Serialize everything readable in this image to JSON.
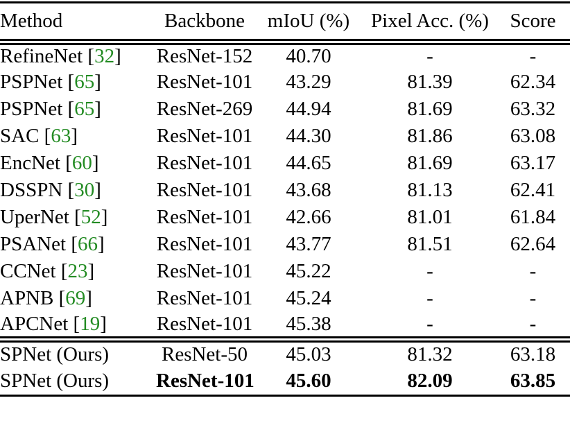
{
  "table": {
    "header": {
      "method": "Method",
      "backbone": "Backbone",
      "miou": "mIoU (%)",
      "pixel_acc": "Pixel Acc. (%)",
      "score": "Score"
    },
    "citation_color": "#228B22",
    "rows": [
      {
        "method": "RefineNet",
        "cite": "[32]",
        "backbone": "ResNet-152",
        "miou": "40.70",
        "pixel_acc": "-",
        "score": "-",
        "bold_values": false
      },
      {
        "method": "PSPNet",
        "cite": "[65]",
        "backbone": "ResNet-101",
        "miou": "43.29",
        "pixel_acc": "81.39",
        "score": "62.34",
        "bold_values": false
      },
      {
        "method": "PSPNet",
        "cite": "[65]",
        "backbone": "ResNet-269",
        "miou": "44.94",
        "pixel_acc": "81.69",
        "score": "63.32",
        "bold_values": false
      },
      {
        "method": "SAC",
        "cite": "[63]",
        "backbone": "ResNet-101",
        "miou": "44.30",
        "pixel_acc": "81.86",
        "score": "63.08",
        "bold_values": false
      },
      {
        "method": "EncNet",
        "cite": "[60]",
        "backbone": "ResNet-101",
        "miou": "44.65",
        "pixel_acc": "81.69",
        "score": "63.17",
        "bold_values": false
      },
      {
        "method": "DSSPN",
        "cite": "[30]",
        "backbone": "ResNet-101",
        "miou": "43.68",
        "pixel_acc": "81.13",
        "score": "62.41",
        "bold_values": false
      },
      {
        "method": "UperNet",
        "cite": "[52]",
        "backbone": "ResNet-101",
        "miou": "42.66",
        "pixel_acc": "81.01",
        "score": "61.84",
        "bold_values": false
      },
      {
        "method": "PSANet",
        "cite": "[66]",
        "backbone": "ResNet-101",
        "miou": "43.77",
        "pixel_acc": "81.51",
        "score": "62.64",
        "bold_values": false
      },
      {
        "method": "CCNet",
        "cite": "[23]",
        "backbone": "ResNet-101",
        "miou": "45.22",
        "pixel_acc": "-",
        "score": "-",
        "bold_values": false
      },
      {
        "method": "APNB",
        "cite": "[69]",
        "backbone": "ResNet-101",
        "miou": "45.24",
        "pixel_acc": "-",
        "score": "-",
        "bold_values": false
      },
      {
        "method": "APCNet",
        "cite": "[19]",
        "backbone": "ResNet-101",
        "miou": "45.38",
        "pixel_acc": "-",
        "score": "-",
        "bold_values": false
      }
    ],
    "ours_rows": [
      {
        "method": "SPNet (Ours)",
        "cite": "",
        "backbone": "ResNet-50",
        "miou": "45.03",
        "pixel_acc": "81.32",
        "score": "63.18",
        "bold_values": false
      },
      {
        "method": "SPNet (Ours)",
        "cite": "",
        "backbone": "ResNet-101",
        "miou": "45.60",
        "pixel_acc": "82.09",
        "score": "63.85",
        "bold_values": true
      }
    ]
  }
}
